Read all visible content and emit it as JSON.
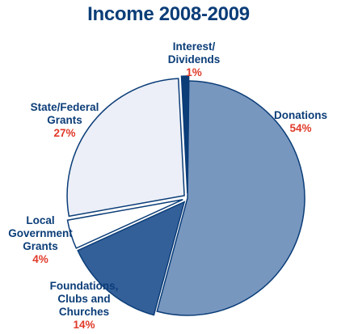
{
  "chart_data": {
    "type": "pie",
    "title": "Income 2008-2009",
    "slices": [
      {
        "label_lines": [
          "Donations"
        ],
        "pct_label": "54%",
        "value": 54,
        "color": "#7897bf"
      },
      {
        "label_lines": [
          "Foundations,",
          "Clubs and",
          "Churches"
        ],
        "pct_label": "14%",
        "value": 14,
        "color": "#34609a"
      },
      {
        "label_lines": [
          "Local",
          "Government",
          "Grants"
        ],
        "pct_label": "4%",
        "value": 4,
        "color": "#ffffff"
      },
      {
        "label_lines": [
          "State/Federal",
          "Grants"
        ],
        "pct_label": "27%",
        "value": 27,
        "color": "#eceff7"
      },
      {
        "label_lines": [
          "Interest/",
          "Dividends"
        ],
        "pct_label": "1%",
        "value": 1,
        "color": "#0b3d78"
      }
    ]
  }
}
